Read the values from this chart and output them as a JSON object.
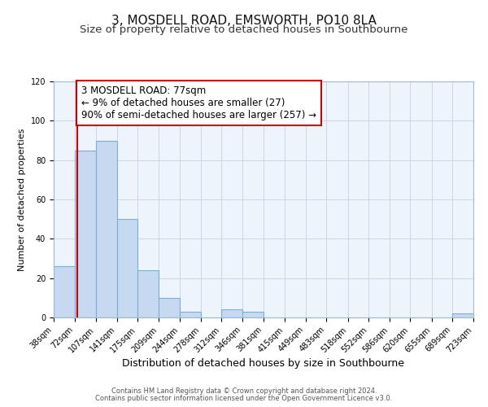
{
  "title": "3, MOSDELL ROAD, EMSWORTH, PO10 8LA",
  "subtitle": "Size of property relative to detached houses in Southbourne",
  "xlabel": "Distribution of detached houses by size in Southbourne",
  "ylabel": "Number of detached properties",
  "bar_edges": [
    38,
    72,
    107,
    141,
    175,
    209,
    244,
    278,
    312,
    346,
    381,
    415,
    449,
    483,
    518,
    552,
    586,
    620,
    655,
    689,
    723
  ],
  "bar_heights": [
    26,
    85,
    90,
    50,
    24,
    10,
    3,
    0,
    4,
    3,
    0,
    0,
    0,
    0,
    0,
    0,
    0,
    0,
    0,
    2
  ],
  "bar_color": "#c6d9f0",
  "bar_edgecolor": "#7bafd4",
  "redline_x": 77,
  "redline_color": "#cc0000",
  "ylim": [
    0,
    120
  ],
  "annotation_text": "3 MOSDELL ROAD: 77sqm\n← 9% of detached houses are smaller (27)\n90% of semi-detached houses are larger (257) →",
  "annotation_box_edgecolor": "#cc0000",
  "annotation_box_facecolor": "#ffffff",
  "footnote1": "Contains HM Land Registry data © Crown copyright and database right 2024.",
  "footnote2": "Contains public sector information licensed under the Open Government Licence v3.0.",
  "tick_labels": [
    "38sqm",
    "72sqm",
    "107sqm",
    "141sqm",
    "175sqm",
    "209sqm",
    "244sqm",
    "278sqm",
    "312sqm",
    "346sqm",
    "381sqm",
    "415sqm",
    "449sqm",
    "483sqm",
    "518sqm",
    "552sqm",
    "586sqm",
    "620sqm",
    "655sqm",
    "689sqm",
    "723sqm"
  ],
  "title_fontsize": 11,
  "subtitle_fontsize": 9.5,
  "xlabel_fontsize": 9,
  "ylabel_fontsize": 8,
  "tick_fontsize": 7,
  "annotation_fontsize": 8.5,
  "footnote_fontsize": 6
}
